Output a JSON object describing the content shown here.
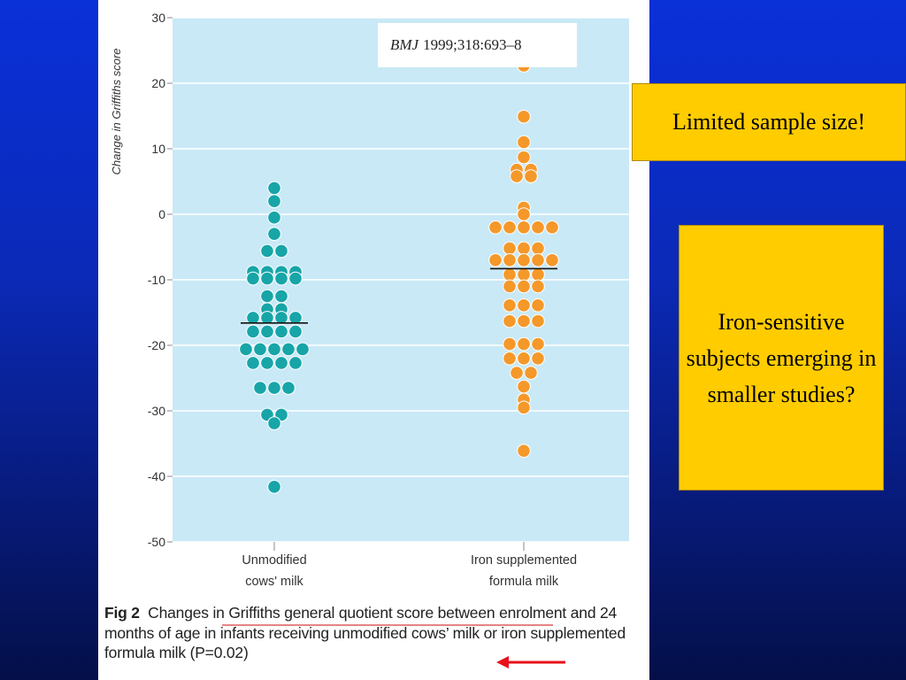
{
  "callouts": {
    "limited": "Limited sample size!",
    "iron_sensitive": "Iron-sensitive subjects emerging in smaller studies?"
  },
  "reference": {
    "journal": "BMJ",
    "citation": "1999;318:693–8"
  },
  "caption": {
    "label": "Fig 2",
    "text_before": "Changes in ",
    "underlined": "Griffiths general quotient score between en",
    "text_after": "rolment and 24 months of age in infants receiving unmodified cows’ milk or iron supplemented formula milk (P=0.02)"
  },
  "colors": {
    "plot_bg": "#c9e9f7",
    "group1": "#17a5a8",
    "group2": "#f5982a",
    "callout_bg": "#ffcc00",
    "underline": "#d63a3a",
    "arrow": "#e8101a"
  },
  "chart_data": {
    "type": "scatter",
    "ylabel": "Change in Griffiths score",
    "ylim": [
      -50,
      30
    ],
    "yticks": [
      "30",
      "20",
      "10",
      "0",
      "-10",
      "-20",
      "-30",
      "-40",
      "-50"
    ],
    "grid": true,
    "categories": [
      "Unmodified cows' milk",
      "Iron supplemented formula milk"
    ],
    "category_lines": [
      [
        "Unmodified",
        "cows' milk"
      ],
      [
        "Iron supplemented",
        "formula milk"
      ]
    ],
    "groups": [
      {
        "name": "Unmodified cows' milk",
        "mean": -16.6,
        "values": [
          4,
          2,
          -0.5,
          -3,
          -5.6,
          -5.6,
          -8.8,
          -8.8,
          -8.8,
          -8.8,
          -9.8,
          -9.8,
          -9.8,
          -9.8,
          -12.5,
          -12.5,
          -14.5,
          -14.5,
          -15.8,
          -15.8,
          -15.8,
          -15.8,
          -17.9,
          -17.9,
          -17.9,
          -17.9,
          -20.6,
          -20.6,
          -20.6,
          -20.6,
          -20.6,
          -22.7,
          -22.7,
          -22.7,
          -22.7,
          -26.5,
          -26.5,
          -26.5,
          -30.6,
          -30.6,
          -31.9,
          -41.6
        ]
      },
      {
        "name": "Iron supplemented formula milk",
        "mean": -8.3,
        "values": [
          22.7,
          14.9,
          11,
          8.7,
          6.8,
          6.8,
          5.8,
          5.8,
          1,
          0,
          -2,
          -2,
          -2,
          -2,
          -2,
          -5.2,
          -5.2,
          -5.2,
          -7,
          -7,
          -7,
          -7,
          -7,
          -9.2,
          -9.2,
          -9.2,
          -11,
          -11,
          -11,
          -13.9,
          -13.9,
          -13.9,
          -16.3,
          -16.3,
          -16.3,
          -19.8,
          -19.8,
          -19.8,
          -22,
          -22,
          -22,
          -24.2,
          -24.2,
          -26.3,
          -28.3,
          -29.5,
          -36.1
        ]
      }
    ]
  }
}
